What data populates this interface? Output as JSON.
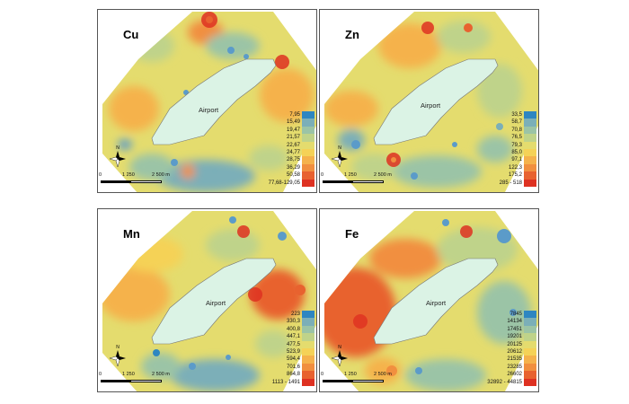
{
  "palette": [
    "#2e86c1",
    "#5b9bc9",
    "#7bafb8",
    "#9bc4a6",
    "#bfd38a",
    "#e4dc6e",
    "#f5d257",
    "#f5b24c",
    "#f18f3f",
    "#e8622f",
    "#de3121"
  ],
  "panels": [
    {
      "element": "Cu",
      "airport": "Airport",
      "legend": [
        "7,95",
        "15,49",
        "19,47",
        "21,57",
        "22,67",
        "24,77",
        "28,75",
        "36,29",
        "50,58",
        "77,68-129,05"
      ],
      "scale": {
        "zero": "0",
        "mid": "1 250",
        "end": "2 500 m"
      },
      "north": "N"
    },
    {
      "element": "Zn",
      "airport": "Airport",
      "legend": [
        "33,5",
        "58,7",
        "70,8",
        "76,5",
        "79,3",
        "85,0",
        "97,1",
        "122,3",
        "175,2",
        "285 - 518"
      ],
      "scale": {
        "zero": "0",
        "mid": "1 250",
        "end": "2 500 m"
      },
      "north": "N"
    },
    {
      "element": "Mn",
      "airport": "Airport",
      "legend": [
        "223",
        "330,3",
        "400,8",
        "447,1",
        "477,5",
        "523,9",
        "594,4",
        "701,6",
        "864,8",
        "1113 - 1491"
      ],
      "scale": {
        "zero": "0",
        "mid": "1 250",
        "end": "2 500 m"
      },
      "north": "N"
    },
    {
      "element": "Fe",
      "airport": "Airport",
      "legend": [
        "7845",
        "14134",
        "17451",
        "19201",
        "20125",
        "20612",
        "21535",
        "23285",
        "26602",
        "32892 - 44815"
      ],
      "scale": {
        "zero": "0",
        "mid": "1 250",
        "end": "2 500 m"
      },
      "north": "N"
    }
  ]
}
